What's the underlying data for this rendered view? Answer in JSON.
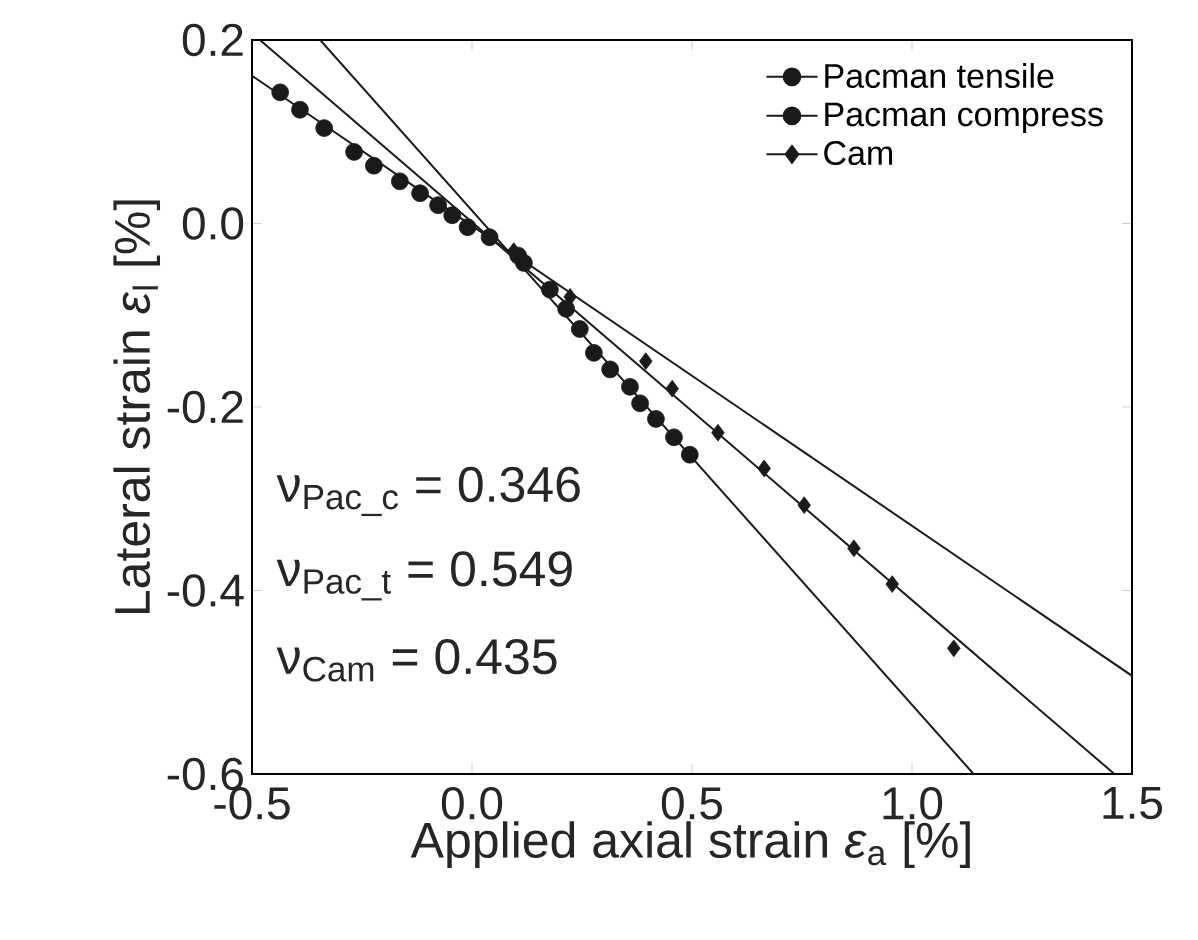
{
  "chart_data": {
    "type": "scatter",
    "xlabel": "Applied axial strain *ε*$_{a}$ [%]",
    "ylabel": "Lateral strain *ε*$_{l}$ [%]",
    "xlim": [
      -0.5,
      1.5
    ],
    "ylim": [
      -0.6,
      0.2
    ],
    "xticks": [
      {
        "value": -0.5,
        "label": "-0.5"
      },
      {
        "value": 0,
        "label": "0.0"
      },
      {
        "value": 0.5,
        "label": "0.5"
      },
      {
        "value": 1.0,
        "label": "1.0"
      },
      {
        "value": 1.5,
        "label": "1.5"
      }
    ],
    "yticks": [
      {
        "value": -0.6,
        "label": "-0.6"
      },
      {
        "value": -0.4,
        "label": "-0.4"
      },
      {
        "value": -0.2,
        "label": "-0.2"
      },
      {
        "value": 0,
        "label": "0.0"
      },
      {
        "value": 0.2,
        "label": "0.2"
      }
    ],
    "legend": "top right",
    "annotations": [
      "ν$_{Pac_c}$ = 0.346",
      "ν$_{Pac_t}$ = 0.549",
      "ν$_{Cam}$ = 0.435"
    ],
    "series": [
      {
        "name": "Pacman tensile",
        "marker": "circle",
        "color": "#1a1a1a",
        "x": [
          0.118,
          0.177,
          0.214,
          0.245,
          0.277,
          0.314,
          0.359,
          0.382,
          0.418,
          0.459,
          0.495
        ],
        "values": [
          -0.043,
          -0.072,
          -0.093,
          -0.115,
          -0.141,
          -0.159,
          -0.178,
          -0.196,
          -0.213,
          -0.233,
          -0.252
        ]
      },
      {
        "name": "Pacman compress",
        "marker": "circle",
        "color": "#1a1a1a",
        "x": [
          -0.436,
          -0.391,
          -0.336,
          -0.268,
          -0.223,
          -0.164,
          -0.118,
          -0.077,
          -0.045,
          -0.01,
          0.04,
          0.105
        ],
        "values": [
          0.143,
          0.124,
          0.104,
          0.078,
          0.063,
          0.046,
          0.033,
          0.02,
          0.009,
          -0.004,
          -0.015,
          -0.035
        ]
      },
      {
        "name": "Cam",
        "marker": "diamond",
        "color": "#1a1a1a",
        "x": [
          0.095,
          0.223,
          0.395,
          0.455,
          0.559,
          0.664,
          0.755,
          0.868,
          0.955,
          1.095
        ],
        "values": [
          -0.03,
          -0.08,
          -0.15,
          -0.18,
          -0.228,
          -0.267,
          -0.307,
          -0.354,
          -0.393,
          -0.463
        ]
      },
      {
        "type": "line",
        "marker": "none",
        "color": "#1a1a1a",
        "x": [
          -0.5,
          1.5
        ],
        "values": [
          0.161,
          -0.493
        ]
      },
      {
        "type": "line",
        "marker": "none",
        "color": "#1a1a1a",
        "x": [
          -0.345,
          1.14
        ],
        "values": [
          0.2,
          -0.6
        ]
      },
      {
        "type": "line",
        "marker": "none",
        "color": "#1a1a1a",
        "x": [
          -0.482,
          1.46
        ],
        "values": [
          0.2,
          -0.6
        ]
      }
    ]
  }
}
